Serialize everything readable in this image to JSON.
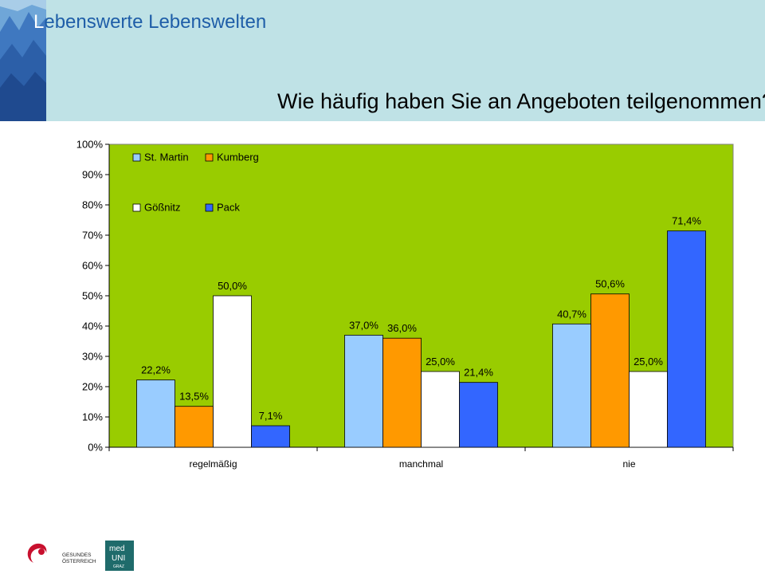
{
  "header": {
    "title_first_letter": "L",
    "title_rest": "ebenswerte Lebenswelten",
    "question": "Wie häufig haben Sie an Angeboten teilgenommen?"
  },
  "colors": {
    "header_band": "#bfe2e6",
    "plot_background": "#99cc00",
    "title_color": "#1f5ea8"
  },
  "logos": {
    "gesundes_line1": "GESUNDES",
    "gesundes_line2": "ÖSTERREICH",
    "meduni_line1": "med",
    "meduni_line2": "UNI",
    "meduni_line3": "GRAZ"
  },
  "chart_data": {
    "type": "bar",
    "title": "Wie häufig haben Sie an Angeboten teilgenommen?",
    "xlabel": "",
    "ylabel": "",
    "categories": [
      "regelmäßig",
      "manchmal",
      "nie"
    ],
    "ylim": [
      0,
      100
    ],
    "yticks": [
      "0%",
      "10%",
      "20%",
      "30%",
      "40%",
      "50%",
      "60%",
      "70%",
      "80%",
      "90%",
      "100%"
    ],
    "legend_position": "top-left (inside plot, 2x2)",
    "grid": false,
    "series": [
      {
        "name": "St. Martin",
        "color": "#99ccff",
        "values": [
          22.2,
          37.0,
          40.7
        ],
        "labels": [
          "22,2%",
          "37,0%",
          "40,7%"
        ]
      },
      {
        "name": "Kumberg",
        "color": "#ff9900",
        "values": [
          13.5,
          36.0,
          50.6
        ],
        "labels": [
          "13,5%",
          "36,0%",
          "50,6%"
        ]
      },
      {
        "name": "Gößnitz",
        "color": "#ffffff",
        "values": [
          50.0,
          25.0,
          25.0
        ],
        "labels": [
          "50,0%",
          "25,0%",
          "25,0%"
        ]
      },
      {
        "name": "Pack",
        "color": "#3366ff",
        "values": [
          7.1,
          21.4,
          71.4
        ],
        "labels": [
          "7,1%",
          "21,4%",
          "71,4%"
        ]
      }
    ]
  }
}
